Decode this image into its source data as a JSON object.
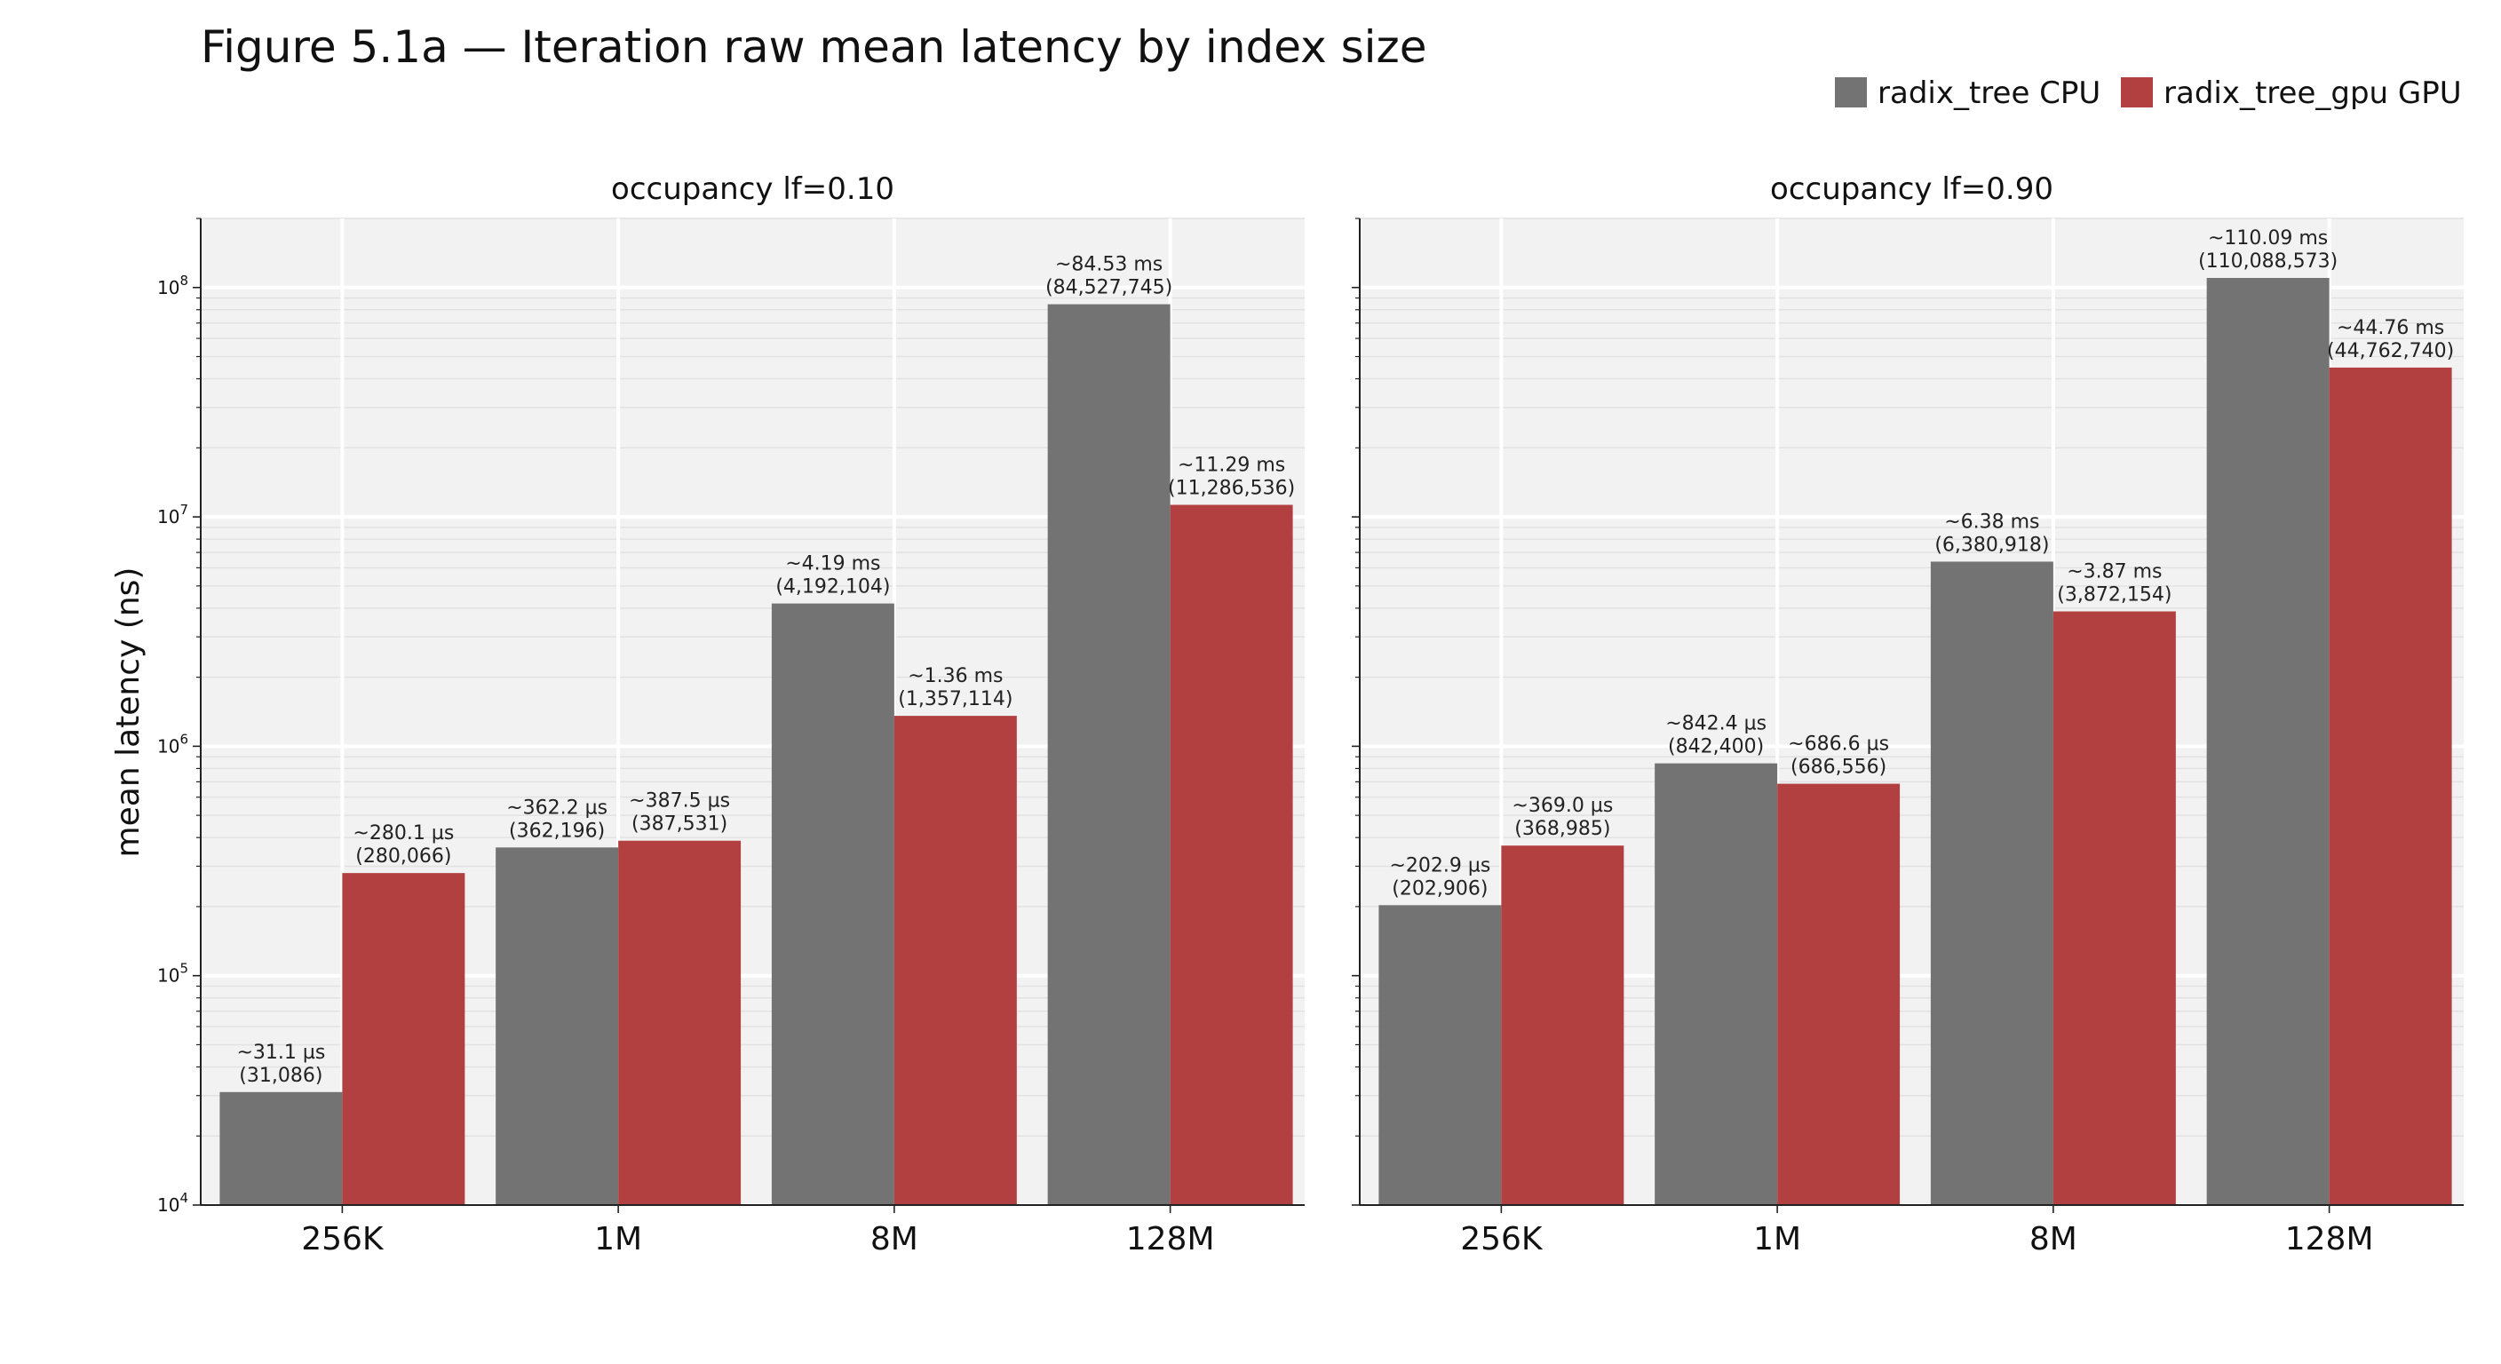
{
  "figure_title": "Figure 5.1a — Iteration raw mean latency by index size",
  "colors": {
    "cpu": "#737373",
    "gpu": "#b24040",
    "panel_bg": "#f2f2f2",
    "grid": "#ffffff"
  },
  "chart_data": {
    "type": "bar",
    "scale": "log",
    "ylabel": "mean latency (ns)",
    "ylim": [
      10000,
      200000000
    ],
    "yticks": [
      {
        "value": 10000,
        "base": "10",
        "exp": "4"
      },
      {
        "value": 100000,
        "base": "10",
        "exp": "5"
      },
      {
        "value": 1000000,
        "base": "10",
        "exp": "6"
      },
      {
        "value": 10000000,
        "base": "10",
        "exp": "7"
      },
      {
        "value": 100000000,
        "base": "10",
        "exp": "8"
      }
    ],
    "grid": true,
    "legend": {
      "placement": "top-right",
      "entries": [
        "radix_tree CPU",
        "radix_tree_gpu GPU"
      ]
    },
    "categories": [
      "256K",
      "1M",
      "8M",
      "128M"
    ],
    "panels": [
      {
        "title": "occupancy lf=0.10",
        "series": [
          {
            "name": "radix_tree CPU",
            "values": [
              31086,
              362196,
              4192104,
              84527745
            ],
            "labels": [
              [
                "~31.1 µs",
                "(31,086)"
              ],
              [
                "~362.2 µs",
                "(362,196)"
              ],
              [
                "~4.19 ms",
                "(4,192,104)"
              ],
              [
                "~84.53 ms",
                "(84,527,745)"
              ]
            ]
          },
          {
            "name": "radix_tree_gpu GPU",
            "values": [
              280066,
              387531,
              1357114,
              11286536
            ],
            "labels": [
              [
                "~280.1 µs",
                "(280,066)"
              ],
              [
                "~387.5 µs",
                "(387,531)"
              ],
              [
                "~1.36 ms",
                "(1,357,114)"
              ],
              [
                "~11.29 ms",
                "(11,286,536)"
              ]
            ]
          }
        ]
      },
      {
        "title": "occupancy lf=0.90",
        "series": [
          {
            "name": "radix_tree CPU",
            "values": [
              202906,
              842400,
              6380918,
              110088573
            ],
            "labels": [
              [
                "~202.9 µs",
                "(202,906)"
              ],
              [
                "~842.4 µs",
                "(842,400)"
              ],
              [
                "~6.38 ms",
                "(6,380,918)"
              ],
              [
                "~110.09 ms",
                "(110,088,573)"
              ]
            ]
          },
          {
            "name": "radix_tree_gpu GPU",
            "values": [
              368985,
              686556,
              3872154,
              44762740
            ],
            "labels": [
              [
                "~369.0 µs",
                "(368,985)"
              ],
              [
                "~686.6 µs",
                "(686,556)"
              ],
              [
                "~3.87 ms",
                "(3,872,154)"
              ],
              [
                "~44.76 ms",
                "(44,762,740)"
              ]
            ]
          }
        ]
      }
    ]
  }
}
